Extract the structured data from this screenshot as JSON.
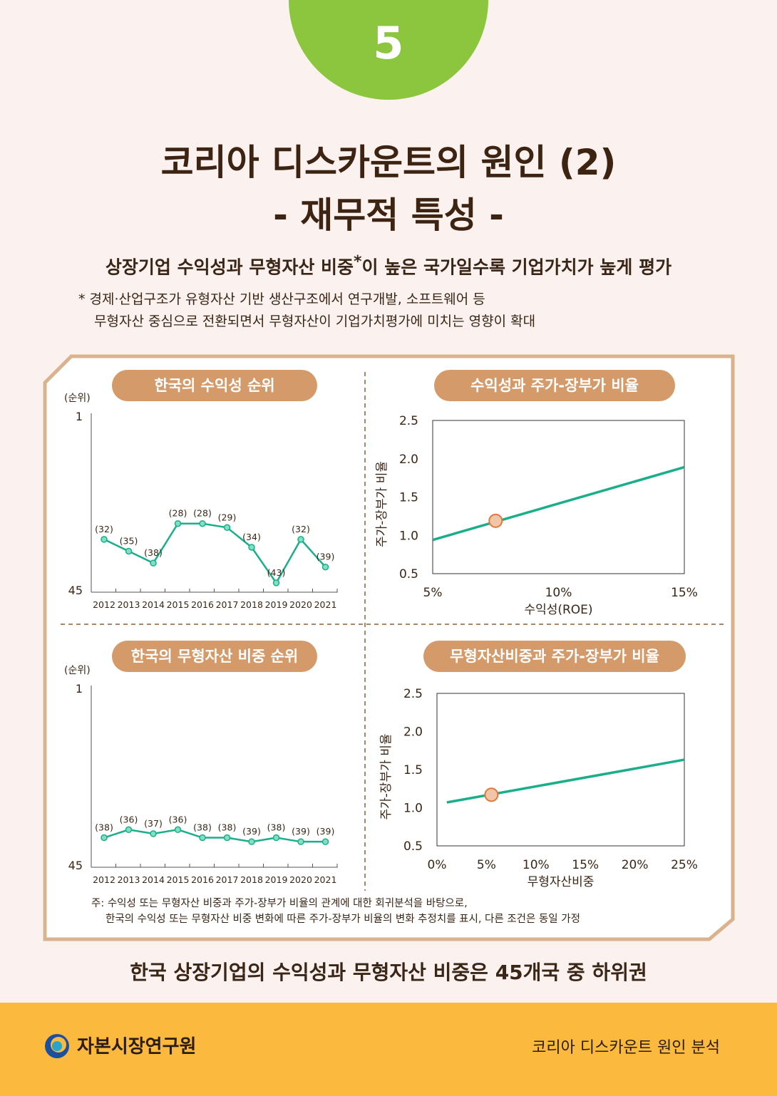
{
  "badge_number": "5",
  "title_line1": "코리아 디스카운트의 원인 (2)",
  "title_line2": "- 재무적 특성 -",
  "subtitle_pre": "상장기업 수익성과 무형자산 비중",
  "subtitle_mark": "*",
  "subtitle_post": "이 높은 국가일수록 기업가치가 높게 평가",
  "note_line1": "*  경제·산업구조가 유형자산 기반 생산구조에서 연구개발, 소프트웨어 등",
  "note_line2": "무형자산 중심으로 전환되면서 무형자산이 기업가치평가에 미치는 영향이 확대",
  "footnote_line1": "주: 수익성 또는 무형자산 비중과 주가-장부가 비율의 관계에 대한 회귀분석을 바탕으로,",
  "footnote_line2": "한국의 수익성 또는 무형자산 비중 변화에 따른 주가-장부가 비율의 변화 추정치를 표시, 다른 조건은 동일 가정",
  "conclusion": "한국 상장기업의 수익성과 무형자산 비중은 45개국 중 하위권",
  "footer": {
    "org": "자본시장연구원",
    "series": "코리아 디스카운트 원인 분석"
  },
  "colors": {
    "green": "#8cc63f",
    "line": "#1aae8a",
    "pill": "#d49a6a",
    "marker": "#f2c4a8",
    "markerEdge": "#e07a3a",
    "footer": "#fbb93e"
  },
  "chart_data": [
    {
      "id": "rank-profit",
      "type": "line",
      "title": "한국의 수익성 순위",
      "ylabel": "(순위)",
      "y_top_label": "1",
      "y_bottom_label": "45",
      "ylim": [
        1,
        45
      ],
      "categories": [
        "2012",
        "2013",
        "2014",
        "2015",
        "2016",
        "2017",
        "2018",
        "2019",
        "2020",
        "2021"
      ],
      "values": [
        32,
        35,
        38,
        28,
        28,
        29,
        34,
        43,
        32,
        39
      ],
      "labels": [
        "(32)",
        "(35)",
        "(38)",
        "(28)",
        "(28)",
        "(29)",
        "(34)",
        "(43)",
        "(32)",
        "(39)"
      ]
    },
    {
      "id": "scatter-roe",
      "type": "line",
      "title": "수익성과 주가-장부가 비율",
      "xlabel": "수익성(ROE)",
      "ylabel": "주가-장부가 비율",
      "xlim": [
        5,
        15
      ],
      "ylim": [
        0.5,
        2.5
      ],
      "xticks": [
        "5%",
        "10%",
        "15%"
      ],
      "yticks": [
        "2.5",
        "2.0",
        "1.5",
        "1.0",
        "0.5"
      ],
      "line": [
        [
          5,
          0.94
        ],
        [
          15,
          1.89
        ]
      ],
      "korea_point": [
        7.5,
        1.19
      ]
    },
    {
      "id": "rank-intangible",
      "type": "line",
      "title": "한국의 무형자산 비중 순위",
      "ylabel": "(순위)",
      "y_top_label": "1",
      "y_bottom_label": "45",
      "ylim": [
        1,
        45
      ],
      "categories": [
        "2012",
        "2013",
        "2014",
        "2015",
        "2016",
        "2017",
        "2018",
        "2019",
        "2020",
        "2021"
      ],
      "values": [
        38,
        36,
        37,
        36,
        38,
        38,
        39,
        38,
        39,
        39
      ],
      "labels": [
        "(38)",
        "(36)",
        "(37)",
        "(36)",
        "(38)",
        "(38)",
        "(39)",
        "(38)",
        "(39)",
        "(39)"
      ]
    },
    {
      "id": "scatter-intangible",
      "type": "line",
      "title": "무형자산비중과 주가-장부가 비율",
      "xlabel": "무형자산비중",
      "ylabel": "주가-장부가 비율",
      "xlim": [
        0,
        25
      ],
      "ylim": [
        0.5,
        2.5
      ],
      "xticks": [
        "0%",
        "5%",
        "10%",
        "15%",
        "20%",
        "25%"
      ],
      "yticks": [
        "2.5",
        "2.0",
        "1.5",
        "1.0",
        "0.5"
      ],
      "line": [
        [
          1,
          1.07
        ],
        [
          25,
          1.63
        ]
      ],
      "korea_point": [
        5.5,
        1.17
      ]
    }
  ]
}
